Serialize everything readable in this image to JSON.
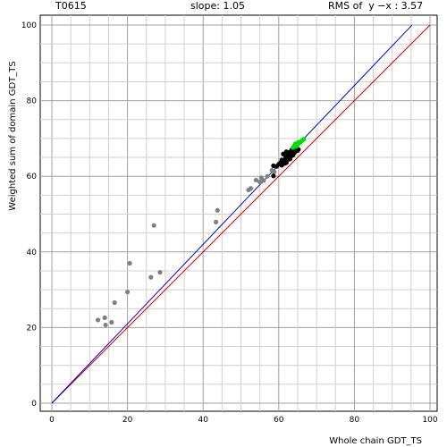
{
  "header": {
    "target": "T0615",
    "slope": "slope: 1.05",
    "rms": "RMS of  y −x : 3.57"
  },
  "chart_data": {
    "type": "scatter",
    "title": "",
    "xlabel": "Whole chain GDT_TS",
    "ylabel": "Weighted sum of domain GDT_TS",
    "xlim": [
      0,
      100
    ],
    "ylim": [
      0,
      100
    ],
    "x_ticks": [
      "0",
      "20",
      "40",
      "60",
      "80",
      "100"
    ],
    "y_ticks": [
      "0",
      "20",
      "40",
      "60",
      "80",
      "100"
    ],
    "grid": true,
    "colors": {
      "gray": "#808080",
      "black": "#000000",
      "green": "#00dd00",
      "diag": "#cc0000",
      "fit": "#0000cc"
    },
    "lines": [
      {
        "name": "y = x",
        "color": "#cc0000",
        "slope": 1.0,
        "x_range": [
          0,
          100
        ]
      },
      {
        "name": "fit",
        "color": "#0000cc",
        "slope": 1.05,
        "x_range": [
          0,
          95.2
        ]
      }
    ],
    "series": [
      {
        "color": "#808080",
        "points": [
          [
            12.2,
            22.0
          ],
          [
            14.0,
            22.6
          ],
          [
            14.2,
            20.7
          ],
          [
            15.8,
            21.4
          ],
          [
            16.6,
            26.6
          ],
          [
            20.0,
            29.4
          ],
          [
            20.6,
            37.0
          ],
          [
            26.2,
            33.3
          ],
          [
            27.0,
            47.0
          ],
          [
            28.6,
            34.6
          ],
          [
            43.4,
            47.9
          ],
          [
            43.8,
            51.0
          ],
          [
            52.0,
            56.4
          ],
          [
            52.6,
            56.8
          ],
          [
            54.0,
            59.0
          ],
          [
            55.0,
            58.5
          ],
          [
            55.4,
            59.6
          ],
          [
            56.0,
            58.9
          ],
          [
            57.0,
            60.0
          ],
          [
            58.2,
            61.6
          ],
          [
            58.8,
            61.2
          ]
        ]
      },
      {
        "color": "#000000",
        "points": [
          [
            58.6,
            60.1
          ],
          [
            58.6,
            62.8
          ],
          [
            59.4,
            62.6
          ],
          [
            60.0,
            63.2
          ],
          [
            60.4,
            63.5
          ],
          [
            60.8,
            62.9
          ],
          [
            60.8,
            64.3
          ],
          [
            61.2,
            65.9
          ],
          [
            61.4,
            64.0
          ],
          [
            61.6,
            63.4
          ],
          [
            61.8,
            64.9
          ],
          [
            62.0,
            63.6
          ],
          [
            62.2,
            65.4
          ],
          [
            62.4,
            64.4
          ],
          [
            62.6,
            66.0
          ],
          [
            62.8,
            65.0
          ],
          [
            63.0,
            66.4
          ],
          [
            63.2,
            65.2
          ],
          [
            63.4,
            66.9
          ],
          [
            63.6,
            66.1
          ],
          [
            63.8,
            65.6
          ],
          [
            64.0,
            67.0
          ],
          [
            64.2,
            66.3
          ],
          [
            64.4,
            67.2
          ],
          [
            64.6,
            66.7
          ],
          [
            64.8,
            67.4
          ],
          [
            65.0,
            66.8
          ],
          [
            65.2,
            67.1
          ],
          [
            63.0,
            64.6
          ],
          [
            62.0,
            66.5
          ]
        ]
      },
      {
        "color": "#00dd00",
        "points": [
          [
            63.8,
            67.6
          ],
          [
            64.2,
            68.1
          ],
          [
            64.6,
            67.9
          ],
          [
            65.0,
            68.4
          ],
          [
            65.4,
            68.8
          ],
          [
            65.8,
            69.1
          ],
          [
            66.2,
            69.5
          ],
          [
            64.4,
            68.6
          ],
          [
            65.2,
            69.0
          ],
          [
            66.6,
            69.8
          ]
        ]
      }
    ]
  }
}
